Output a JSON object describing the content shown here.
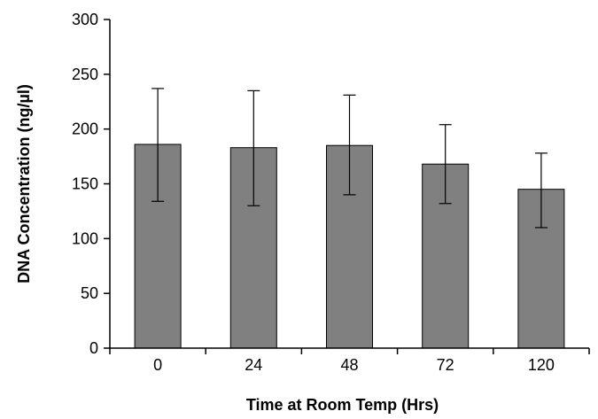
{
  "chart_data": {
    "type": "bar",
    "title": "",
    "xlabel": "Time at Room Temp (Hrs)",
    "ylabel": "DNA Concentration (ng/µl)",
    "categories": [
      "0",
      "24",
      "48",
      "72",
      "120"
    ],
    "values": [
      186,
      183,
      185,
      168,
      145
    ],
    "error_low": [
      134,
      130,
      140,
      132,
      110
    ],
    "error_high": [
      237,
      235,
      231,
      204,
      178
    ],
    "ylim": [
      0,
      300
    ],
    "yticks": [
      0,
      50,
      100,
      150,
      200,
      250,
      300
    ],
    "grid": false,
    "legend": "none",
    "colors": {
      "bar_fill": "#808080",
      "bar_stroke": "#000000",
      "axis": "#000000",
      "error_bar": "#000000"
    }
  }
}
